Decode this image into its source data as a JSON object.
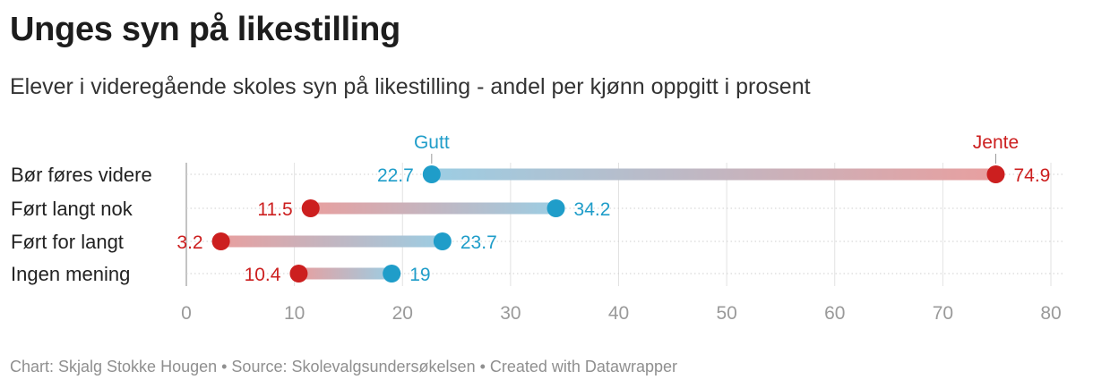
{
  "title": "Unges syn på likestilling",
  "subtitle": "Elever i videregående skoles syn på likestilling - andel per kjønn oppgitt i prosent",
  "footer": "Chart: Skjalg Stokke Hougen • Source: Skolevalgsundersøkelsen • Created with Datawrapper",
  "colors": {
    "gutt": "#1f9dc9",
    "jente": "#cc1f1f"
  },
  "chart_data": {
    "type": "range-dot",
    "title": "Unges syn på likestilling",
    "subtitle": "Elever i videregående skoles syn på likestilling - andel per kjønn oppgitt i prosent",
    "categories": [
      "Bør føres videre",
      "Ført langt nok",
      "Ført for langt",
      "Ingen mening"
    ],
    "series": [
      {
        "name": "Gutt",
        "values": [
          22.7,
          34.2,
          23.7,
          19
        ]
      },
      {
        "name": "Jente",
        "values": [
          74.9,
          11.5,
          3.2,
          10.4
        ]
      }
    ],
    "xlim": [
      0,
      80
    ],
    "ticks": [
      0,
      10,
      20,
      30,
      40,
      50,
      60,
      70,
      80
    ],
    "labels": {
      "gutt": [
        "22.7",
        "34.2",
        "23.7",
        "19"
      ],
      "jente": [
        "74.9",
        "11.5",
        "3.2",
        "10.4"
      ]
    },
    "tick_labels": [
      "0",
      "10",
      "20",
      "30",
      "40",
      "50",
      "60",
      "70",
      "80"
    ],
    "legend": {
      "gutt": "Gutt",
      "jente": "Jente"
    },
    "grid": true
  }
}
